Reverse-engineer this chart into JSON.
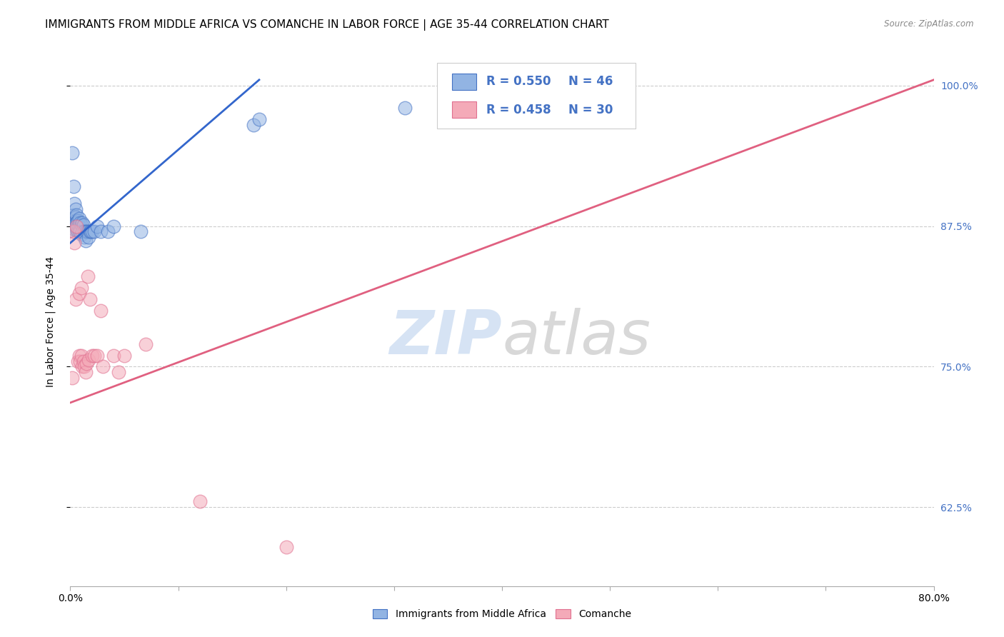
{
  "title": "IMMIGRANTS FROM MIDDLE AFRICA VS COMANCHE IN LABOR FORCE | AGE 35-44 CORRELATION CHART",
  "source": "Source: ZipAtlas.com",
  "ylabel": "In Labor Force | Age 35-44",
  "xlim": [
    0.0,
    0.8
  ],
  "ylim": [
    0.555,
    1.025
  ],
  "xticks": [
    0.0,
    0.1,
    0.2,
    0.3,
    0.4,
    0.5,
    0.6,
    0.7,
    0.8
  ],
  "xticklabels": [
    "0.0%",
    "",
    "",
    "",
    "",
    "",
    "",
    "",
    "80.0%"
  ],
  "ytick_positions": [
    0.625,
    0.75,
    0.875,
    1.0
  ],
  "ytick_labels": [
    "62.5%",
    "75.0%",
    "87.5%",
    "100.0%"
  ],
  "blue_scatter_x": [
    0.002,
    0.003,
    0.003,
    0.003,
    0.004,
    0.004,
    0.004,
    0.005,
    0.005,
    0.005,
    0.005,
    0.005,
    0.006,
    0.006,
    0.006,
    0.007,
    0.007,
    0.007,
    0.008,
    0.008,
    0.008,
    0.009,
    0.009,
    0.01,
    0.01,
    0.011,
    0.011,
    0.012,
    0.013,
    0.013,
    0.014,
    0.015,
    0.016,
    0.017,
    0.018,
    0.019,
    0.02,
    0.022,
    0.025,
    0.028,
    0.035,
    0.04,
    0.065,
    0.17,
    0.175,
    0.31
  ],
  "blue_scatter_y": [
    0.94,
    0.91,
    0.885,
    0.87,
    0.895,
    0.878,
    0.872,
    0.89,
    0.883,
    0.88,
    0.878,
    0.875,
    0.885,
    0.878,
    0.872,
    0.88,
    0.875,
    0.87,
    0.882,
    0.875,
    0.87,
    0.878,
    0.87,
    0.876,
    0.868,
    0.878,
    0.87,
    0.876,
    0.87,
    0.865,
    0.862,
    0.87,
    0.87,
    0.865,
    0.87,
    0.87,
    0.87,
    0.87,
    0.875,
    0.87,
    0.87,
    0.875,
    0.87,
    0.965,
    0.97,
    0.98
  ],
  "pink_scatter_x": [
    0.002,
    0.003,
    0.004,
    0.005,
    0.006,
    0.007,
    0.008,
    0.008,
    0.009,
    0.01,
    0.01,
    0.011,
    0.012,
    0.013,
    0.014,
    0.015,
    0.016,
    0.017,
    0.018,
    0.02,
    0.022,
    0.025,
    0.028,
    0.03,
    0.04,
    0.045,
    0.05,
    0.07,
    0.12,
    0.2
  ],
  "pink_scatter_y": [
    0.74,
    0.87,
    0.86,
    0.81,
    0.875,
    0.755,
    0.815,
    0.76,
    0.755,
    0.82,
    0.76,
    0.75,
    0.755,
    0.75,
    0.745,
    0.753,
    0.83,
    0.756,
    0.81,
    0.76,
    0.76,
    0.76,
    0.8,
    0.75,
    0.76,
    0.745,
    0.76,
    0.77,
    0.63,
    0.59
  ],
  "blue_line_x": [
    0.0,
    0.175
  ],
  "blue_line_y": [
    0.86,
    1.005
  ],
  "pink_line_x": [
    0.0,
    0.8
  ],
  "pink_line_y": [
    0.718,
    1.005
  ],
  "blue_dot_color": "#92b4e3",
  "blue_edge_color": "#4472c4",
  "pink_dot_color": "#f4aab8",
  "pink_edge_color": "#e07090",
  "blue_line_color": "#3366cc",
  "pink_line_color": "#e06080",
  "watermark_zip_color": "#c8d8ef",
  "watermark_atlas_color": "#c8c8c8",
  "title_fontsize": 11,
  "axis_label_fontsize": 10,
  "tick_fontsize": 10,
  "right_tick_color": "#4472c4"
}
